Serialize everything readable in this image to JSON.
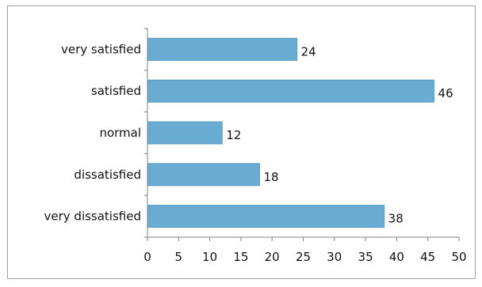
{
  "chart_data": {
    "type": "bar",
    "orientation": "horizontal",
    "categories": [
      "very satisfied",
      "satisfied",
      "normal",
      "dissatisfied",
      "very dissatisfied"
    ],
    "values": [
      24,
      46,
      12,
      18,
      38
    ],
    "xlim": [
      0,
      50
    ],
    "xticks": [
      0,
      5,
      10,
      15,
      20,
      25,
      30,
      35,
      40,
      45,
      50
    ],
    "title": "",
    "xlabel": "",
    "ylabel": "",
    "grid": false,
    "legend": "none",
    "bar_color": "#6aabd2",
    "bar_edge_color": "#5a9cc4",
    "axis_color": "#7f7f7f"
  }
}
